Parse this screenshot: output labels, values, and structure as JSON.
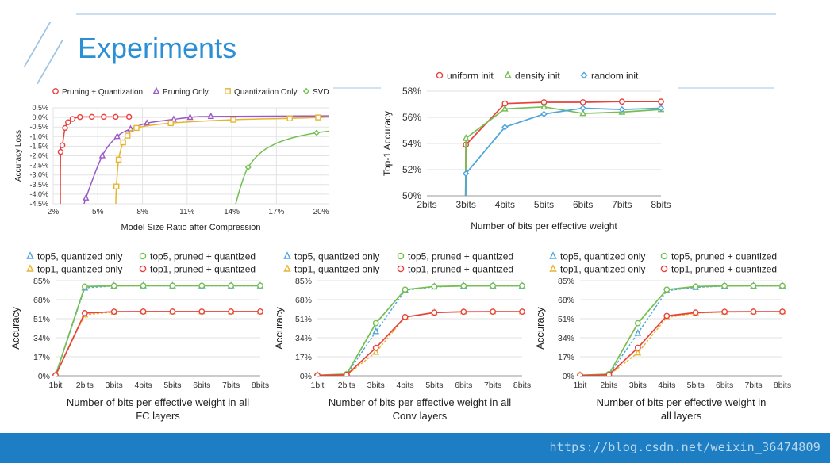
{
  "slide": {
    "title": "Experiments",
    "watermark": "https://blog.csdn.net/weixin_36474809"
  },
  "chart_data": [
    {
      "type": "line",
      "id": "c1",
      "title": "",
      "xlabel": "Model Size Ratio after Compression",
      "ylabel": "Accuracy Loss",
      "xlim": [
        2,
        20.5
      ],
      "ylim": [
        -4.5,
        0.5
      ],
      "xticks": [
        2,
        5,
        8,
        11,
        14,
        17,
        20
      ],
      "xtick_labels": [
        "2%",
        "5%",
        "8%",
        "11%",
        "14%",
        "17%",
        "20%"
      ],
      "yticks": [
        0.5,
        0,
        -0.5,
        -1,
        -1.5,
        -2,
        -2.5,
        -3,
        -3.5,
        -4,
        -4.5
      ],
      "ytick_labels": [
        "0.5%",
        "0.0%",
        "-0.5%",
        "-1.0%",
        "-1.5%",
        "-2.0%",
        "-2.5%",
        "-3.0%",
        "-3.5%",
        "-4.0%",
        "-4.5%"
      ],
      "legend_position": "top",
      "series": [
        {
          "name": "Pruning + Quantization",
          "color": "#e8413c",
          "marker": "circle",
          "x": [
            2.5,
            2.62,
            2.8,
            3.0,
            3.3,
            3.8,
            4.6,
            5.4,
            6.2,
            7.1
          ],
          "y": [
            -1.8,
            -1.45,
            -0.55,
            -0.25,
            -0.08,
            0.02,
            0.03,
            0.03,
            0.03,
            0.03
          ],
          "curve_x": [
            2.48,
            2.5,
            2.62,
            2.8,
            3.0,
            3.3,
            3.8,
            4.6,
            5.4,
            6.2,
            7.1
          ],
          "curve_y": [
            -4.7,
            -1.8,
            -1.45,
            -0.55,
            -0.25,
            -0.08,
            0.02,
            0.03,
            0.03,
            0.03,
            0.03
          ]
        },
        {
          "name": "Pruning Only",
          "color": "#9b59c6",
          "marker": "triangle",
          "x": [
            4.2,
            5.3,
            6.3,
            7.2,
            8.3,
            10.1,
            11.2,
            12.6
          ],
          "y": [
            -4.2,
            -2.0,
            -1.0,
            -0.6,
            -0.3,
            -0.1,
            0.0,
            0.05
          ],
          "curve_x": [
            4.05,
            4.2,
            5.3,
            6.3,
            7.2,
            8.3,
            10.1,
            11.2,
            12.6
          ],
          "curve_y": [
            -4.7,
            -4.2,
            -2.0,
            -1.0,
            -0.6,
            -0.3,
            -0.1,
            0.0,
            0.05
          ],
          "extend_to": [
            20.5,
            0.08
          ]
        },
        {
          "name": "Quantization Only",
          "color": "#e6b530",
          "marker": "square",
          "x": [
            6.25,
            6.4,
            6.7,
            7.0,
            7.6,
            9.9,
            14.1,
            17.9,
            19.8
          ],
          "y": [
            -3.6,
            -2.2,
            -1.3,
            -0.95,
            -0.55,
            -0.3,
            -0.12,
            -0.05,
            0.0
          ],
          "curve_x": [
            6.2,
            6.25,
            6.4,
            6.7,
            7.0,
            7.6,
            9.9,
            14.1,
            17.9,
            19.8
          ],
          "curve_y": [
            -4.7,
            -3.6,
            -2.2,
            -1.3,
            -0.95,
            -0.55,
            -0.3,
            -0.12,
            -0.05,
            0.0
          ],
          "extend_to": [
            20.5,
            0.02
          ]
        },
        {
          "name": "SVD",
          "color": "#74bf4f",
          "marker": "diamond",
          "x": [
            15.1,
            19.7
          ],
          "y": [
            -2.6,
            -0.8
          ],
          "curve_x": [
            14.2,
            14.6,
            15.1,
            16.0,
            17.0,
            18.0,
            19.0,
            19.7,
            20.5
          ],
          "curve_y": [
            -4.7,
            -3.6,
            -2.6,
            -1.8,
            -1.35,
            -1.08,
            -0.9,
            -0.8,
            -0.72
          ]
        }
      ]
    },
    {
      "type": "line",
      "id": "c2",
      "xlabel": "Number of bits per effective weight",
      "ylabel": "Top-1 Accuracy",
      "categories": [
        "2bits",
        "3bits",
        "4bits",
        "5bits",
        "6bits",
        "7bits",
        "8bits"
      ],
      "ylim": [
        50,
        58
      ],
      "yticks": [
        50,
        52,
        54,
        56,
        58
      ],
      "ytick_labels": [
        "50%",
        "52%",
        "54%",
        "56%",
        "58%"
      ],
      "legend_position": "top",
      "series": [
        {
          "name": "uniform init",
          "color": "#e8413c",
          "marker": "circle",
          "values": [
            null,
            53.9,
            57.05,
            57.15,
            57.15,
            57.2,
            57.2
          ],
          "start": [
            1,
            45.0
          ]
        },
        {
          "name": "density init",
          "color": "#74bf4f",
          "marker": "triangle",
          "values": [
            null,
            54.4,
            56.65,
            56.8,
            56.3,
            56.4,
            56.6
          ],
          "start": [
            1,
            45.0
          ]
        },
        {
          "name": "random init",
          "color": "#4ea4dd",
          "marker": "diamond",
          "values": [
            null,
            51.7,
            55.25,
            56.25,
            56.7,
            56.6,
            56.7
          ],
          "start": [
            1,
            40.0
          ]
        }
      ]
    },
    {
      "type": "line",
      "id": "c3",
      "xlabel": "Number of bits per effective weight in all",
      "xlabel2": "FC layers",
      "ylabel": "Accuracy",
      "categories": [
        "1bit",
        "2bits",
        "3bits",
        "4bits",
        "5bits",
        "6bits",
        "7bits",
        "8bits"
      ],
      "ylim": [
        0,
        85
      ],
      "yticks": [
        0,
        17,
        34,
        51,
        68,
        85
      ],
      "ytick_labels": [
        "0%",
        "17%",
        "34%",
        "51%",
        "68%",
        "85%"
      ],
      "legend_position": "top",
      "series": [
        {
          "name": "top5, quantized only",
          "color": "#4ea4dd",
          "marker": "triangle",
          "dashed": true,
          "values": [
            0.5,
            78.5,
            80.3,
            80.4,
            80.4,
            80.4,
            80.4,
            80.4
          ]
        },
        {
          "name": "top5, pruned + quantized",
          "color": "#74bf4f",
          "marker": "circle",
          "values": [
            0.5,
            79.8,
            80.4,
            80.5,
            80.5,
            80.5,
            80.5,
            80.5
          ]
        },
        {
          "name": "top1, quantized only",
          "color": "#e6b530",
          "marker": "triangle",
          "dashed": true,
          "values": [
            0.3,
            54.5,
            57.0,
            57.3,
            57.3,
            57.3,
            57.3,
            57.3
          ]
        },
        {
          "name": "top1, pruned + quantized",
          "color": "#e8413c",
          "marker": "circle",
          "values": [
            0.3,
            56.0,
            57.3,
            57.4,
            57.4,
            57.4,
            57.4,
            57.4
          ]
        }
      ]
    },
    {
      "type": "line",
      "id": "c4",
      "xlabel": "Number of bits per effective weight in all",
      "xlabel2": "Conv layers",
      "ylabel": "Accuracy",
      "categories": [
        "1bit",
        "2bits",
        "3bits",
        "4bits",
        "5bits",
        "6bits",
        "7bits",
        "8bits"
      ],
      "ylim": [
        0,
        85
      ],
      "yticks": [
        0,
        17,
        34,
        51,
        68,
        85
      ],
      "ytick_labels": [
        "0%",
        "17%",
        "34%",
        "51%",
        "68%",
        "85%"
      ],
      "legend_position": "top",
      "series": [
        {
          "name": "top5, quantized only",
          "color": "#4ea4dd",
          "marker": "triangle",
          "dashed": true,
          "values": [
            0.5,
            1.0,
            39.5,
            76.5,
            79.5,
            80.2,
            80.3,
            80.3
          ]
        },
        {
          "name": "top5, pruned + quantized",
          "color": "#74bf4f",
          "marker": "circle",
          "values": [
            0.5,
            1.5,
            47.0,
            77.0,
            79.8,
            80.3,
            80.4,
            80.4
          ]
        },
        {
          "name": "top1, quantized only",
          "color": "#e6b530",
          "marker": "triangle",
          "dashed": true,
          "values": [
            0.3,
            0.5,
            21.0,
            52.5,
            56.5,
            57.2,
            57.3,
            57.3
          ]
        },
        {
          "name": "top1, pruned + quantized",
          "color": "#e8413c",
          "marker": "circle",
          "values": [
            0.3,
            0.8,
            25.0,
            52.5,
            56.5,
            57.2,
            57.3,
            57.3
          ]
        }
      ]
    },
    {
      "type": "line",
      "id": "c5",
      "xlabel": "Number of bits per effective weight in",
      "xlabel2": "all layers",
      "ylabel": "Accuracy",
      "categories": [
        "1bit",
        "2bits",
        "3bits",
        "4bits",
        "5bits",
        "6bits",
        "7bits",
        "8bits"
      ],
      "ylim": [
        0,
        85
      ],
      "yticks": [
        0,
        17,
        34,
        51,
        68,
        85
      ],
      "ytick_labels": [
        "0%",
        "17%",
        "34%",
        "51%",
        "68%",
        "85%"
      ],
      "legend_position": "top",
      "series": [
        {
          "name": "top5, quantized only",
          "color": "#4ea4dd",
          "marker": "triangle",
          "dashed": true,
          "values": [
            0.5,
            1.0,
            38.0,
            76.0,
            79.0,
            80.2,
            80.3,
            80.3
          ]
        },
        {
          "name": "top5, pruned + quantized",
          "color": "#74bf4f",
          "marker": "circle",
          "values": [
            0.5,
            1.5,
            47.0,
            77.0,
            79.8,
            80.3,
            80.4,
            80.4
          ]
        },
        {
          "name": "top1, quantized only",
          "color": "#e6b530",
          "marker": "triangle",
          "dashed": true,
          "values": [
            0.3,
            0.5,
            20.5,
            52.0,
            56.0,
            57.0,
            57.3,
            57.3
          ]
        },
        {
          "name": "top1, pruned + quantized",
          "color": "#e8413c",
          "marker": "circle",
          "values": [
            0.3,
            0.8,
            25.0,
            53.5,
            56.5,
            57.2,
            57.3,
            57.3
          ]
        }
      ]
    }
  ]
}
